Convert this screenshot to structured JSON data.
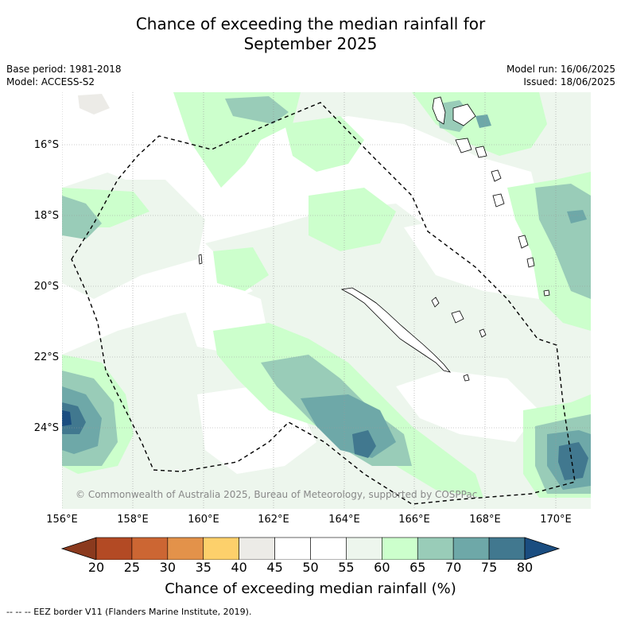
{
  "title_line1": "Chance of exceeding the median rainfall for",
  "title_line2": "September 2025",
  "meta_left": [
    "Base period: 1981-2018",
    "Model: ACCESS-S2"
  ],
  "meta_right": [
    "Model run: 16/06/2025",
    "Issued: 18/06/2025"
  ],
  "lat_labels": [
    "16°S",
    "18°S",
    "20°S",
    "22°S",
    "24°S"
  ],
  "lon_labels": [
    "156°E",
    "158°E",
    "160°E",
    "162°E",
    "164°E",
    "166°E",
    "168°E",
    "170°E"
  ],
  "copyright": "© Commonwealth of Australia 2025, Bureau of Meteorology, supported by COSPPac",
  "colorbar": {
    "title": "Chance of exceeding median rainfall (%)",
    "ticks": [
      "20",
      "25",
      "30",
      "35",
      "40",
      "45",
      "50",
      "55",
      "60",
      "65",
      "70",
      "75",
      "80"
    ],
    "colors": [
      "#b34a24",
      "#cc6633",
      "#e3924a",
      "#fdd06b",
      "#ecebe7",
      "#ffffff",
      "#ffffff",
      "#edf6ed",
      "#ccffcc",
      "#99ccb8",
      "#6ea8a8",
      "#41788f"
    ],
    "low_color": "#8b3a1e",
    "high_color": "#1a4d80"
  },
  "footer": "--  --  -- EEZ border V11 (Flanders Marine Institute, 2019)."
}
